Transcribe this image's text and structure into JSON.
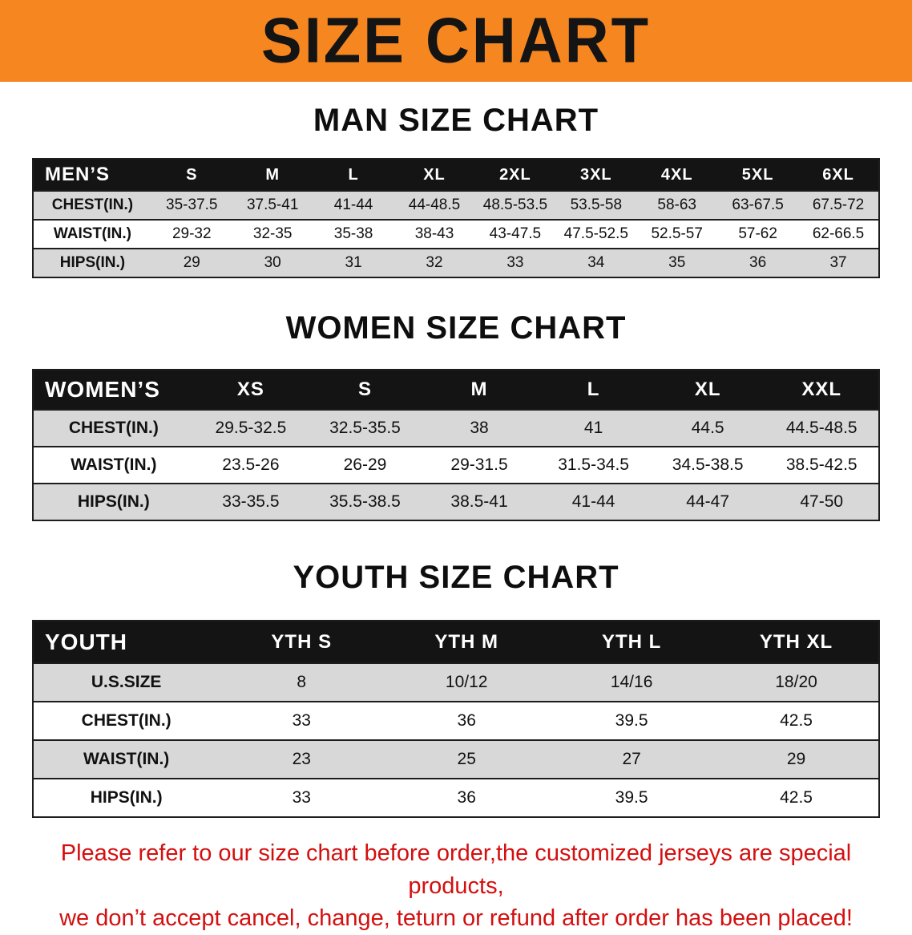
{
  "banner": {
    "title": "SIZE CHART"
  },
  "colors": {
    "banner_bg": "#f68620",
    "table_header_bg": "#141414",
    "table_header_text": "#ffffff",
    "row_shade": "#d8d8d8",
    "notice_text": "#d40f0f"
  },
  "sections": [
    {
      "id": "mens",
      "heading": "MAN SIZE CHART",
      "header": [
        "MEN’S",
        "S",
        "M",
        "L",
        "XL",
        "2XL",
        "3XL",
        "4XL",
        "5XL",
        "6XL"
      ],
      "label_col_width": "14%",
      "rows": [
        {
          "label": "CHEST(IN.)",
          "values": [
            "35-37.5",
            "37.5-41",
            "41-44",
            "44-48.5",
            "48.5-53.5",
            "53.5-58",
            "58-63",
            "63-67.5",
            "67.5-72"
          ]
        },
        {
          "label": "WAIST(IN.)",
          "values": [
            "29-32",
            "32-35",
            "35-38",
            "38-43",
            "43-47.5",
            "47.5-52.5",
            "52.5-57",
            "57-62",
            "62-66.5"
          ]
        },
        {
          "label": "HIPS(IN.)",
          "values": [
            "29",
            "30",
            "31",
            "32",
            "33",
            "34",
            "35",
            "36",
            "37"
          ]
        }
      ]
    },
    {
      "id": "womens",
      "heading": "WOMEN SIZE CHART",
      "header": [
        "WOMEN’S",
        "XS",
        "S",
        "M",
        "L",
        "XL",
        "XXL"
      ],
      "label_col_width": "19%",
      "rows": [
        {
          "label": "CHEST(IN.)",
          "values": [
            "29.5-32.5",
            "32.5-35.5",
            "38",
            "41",
            "44.5",
            "44.5-48.5"
          ]
        },
        {
          "label": "WAIST(IN.)",
          "values": [
            "23.5-26",
            "26-29",
            "29-31.5",
            "31.5-34.5",
            "34.5-38.5",
            "38.5-42.5"
          ]
        },
        {
          "label": "HIPS(IN.)",
          "values": [
            "33-35.5",
            "35.5-38.5",
            "38.5-41",
            "41-44",
            "44-47",
            "47-50"
          ]
        }
      ]
    },
    {
      "id": "youth",
      "heading": "YOUTH SIZE CHART",
      "header": [
        "YOUTH",
        "YTH S",
        "YTH M",
        "YTH L",
        "YTH XL"
      ],
      "label_col_width": "22%",
      "rows": [
        {
          "label": "U.S.SIZE",
          "values": [
            "8",
            "10/12",
            "14/16",
            "18/20"
          ]
        },
        {
          "label": "CHEST(IN.)",
          "values": [
            "33",
            "36",
            "39.5",
            "42.5"
          ]
        },
        {
          "label": "WAIST(IN.)",
          "values": [
            "23",
            "25",
            "27",
            "29"
          ]
        },
        {
          "label": "HIPS(IN.)",
          "values": [
            "33",
            "36",
            "39.5",
            "42.5"
          ]
        }
      ]
    }
  ],
  "notice": {
    "line1": "Please refer to our size chart before order,the customized jerseys are special products,",
    "line2": "we don’t accept cancel, change, teturn or refund after order has been placed!"
  }
}
